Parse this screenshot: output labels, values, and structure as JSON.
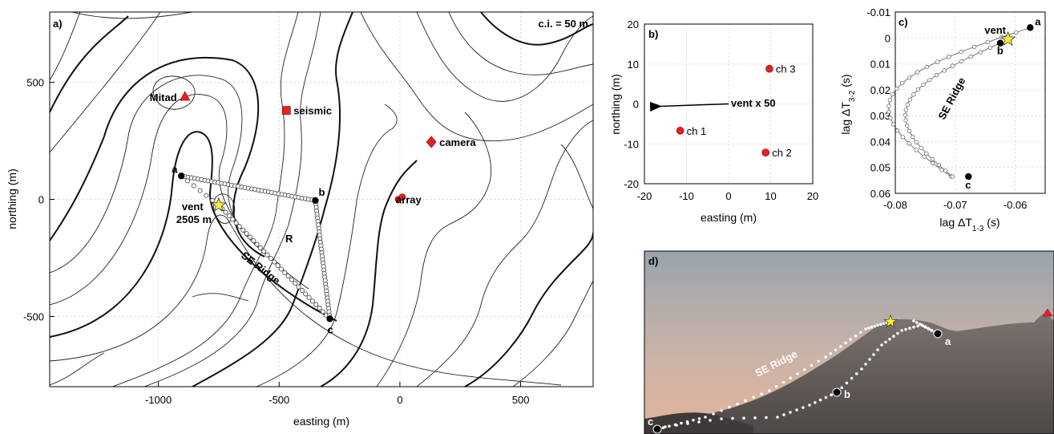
{
  "panel_a": {
    "label": "a)",
    "contour_interval": "c.i. = 50 m",
    "xlabel": "easting (m)",
    "ylabel": "northing (m)",
    "x_ticks": [
      "-1000",
      "-500",
      "0",
      "500"
    ],
    "y_ticks": [
      "500",
      "0",
      "-500"
    ],
    "xlim": [
      -1450,
      800
    ],
    "ylim": [
      -800,
      800
    ],
    "points": [
      {
        "name": "Mitad",
        "label": "Mitad",
        "x": -890,
        "y": 440,
        "marker": "triangle"
      },
      {
        "name": "seismic",
        "label": "seismic",
        "x": -470,
        "y": 380,
        "marker": "square"
      },
      {
        "name": "camera",
        "label": "camera",
        "x": 130,
        "y": 245,
        "marker": "diamond"
      },
      {
        "name": "array",
        "label": "array",
        "x": 0,
        "y": 0,
        "marker": "circle"
      }
    ],
    "vent": {
      "label": "vent",
      "elevation_label": "2505 m",
      "x": -750,
      "y": -25
    },
    "track_points": [
      {
        "label": "a",
        "x": -905,
        "y": 100
      },
      {
        "label": "b",
        "x": -350,
        "y": -5
      },
      {
        "label": "c",
        "x": -290,
        "y": -510
      }
    ],
    "annotations": {
      "R": "R",
      "ridge": "SE Ridge"
    }
  },
  "panel_b": {
    "label": "b)",
    "xlabel": "easting (m)",
    "ylabel": "northing (m)",
    "x_ticks": [
      "-20",
      "-10",
      "0",
      "10",
      "20"
    ],
    "y_ticks": [
      "20",
      "10",
      "0",
      "-10",
      "-20"
    ],
    "xlim": [
      -20,
      20
    ],
    "ylim": [
      -20,
      20
    ],
    "channels": [
      {
        "label": "ch 1",
        "x": -11.5,
        "y": -6.7
      },
      {
        "label": "ch 2",
        "x": 8.8,
        "y": -12.2
      },
      {
        "label": "ch 3",
        "x": 9.7,
        "y": 8.8
      }
    ],
    "vent_arrow_label": "vent x 50",
    "vent_arrow": {
      "x0": 0,
      "y0": 0,
      "x1": -18,
      "y1": -0.6
    }
  },
  "panel_c": {
    "label": "c)",
    "xlabel": "lag ΔT1-3 (s)",
    "ylabel": "lag ΔT3-2 (s)",
    "x_ticks": [
      "-0.08",
      "-0.07",
      "-0.06"
    ],
    "y_ticks": [
      "-0.01",
      "0",
      "0.01",
      "0.02",
      "0.03",
      "0.04",
      "0.05",
      "0.06"
    ],
    "xlim": [
      -0.08,
      -0.055
    ],
    "ylim": [
      -0.01,
      0.06
    ],
    "y_reversed": true,
    "vent_label": "vent",
    "ridge_label": "SE Ridge",
    "endpoints": [
      {
        "label": "a",
        "x": -0.0575,
        "y": -0.004
      },
      {
        "label": "b",
        "x": -0.0625,
        "y": 0.002
      },
      {
        "label": "c",
        "x": -0.0678,
        "y": 0.0535
      }
    ]
  },
  "panel_d": {
    "label": "d)",
    "ridge_label": "SE Ridge",
    "point_labels": [
      "a",
      "b",
      "c"
    ]
  },
  "colors": {
    "marker_red": "#e8201f",
    "vent_star": "#ffee33",
    "sky_top": "#9aa3ae",
    "sky_bottom": "#e0b9a4"
  }
}
